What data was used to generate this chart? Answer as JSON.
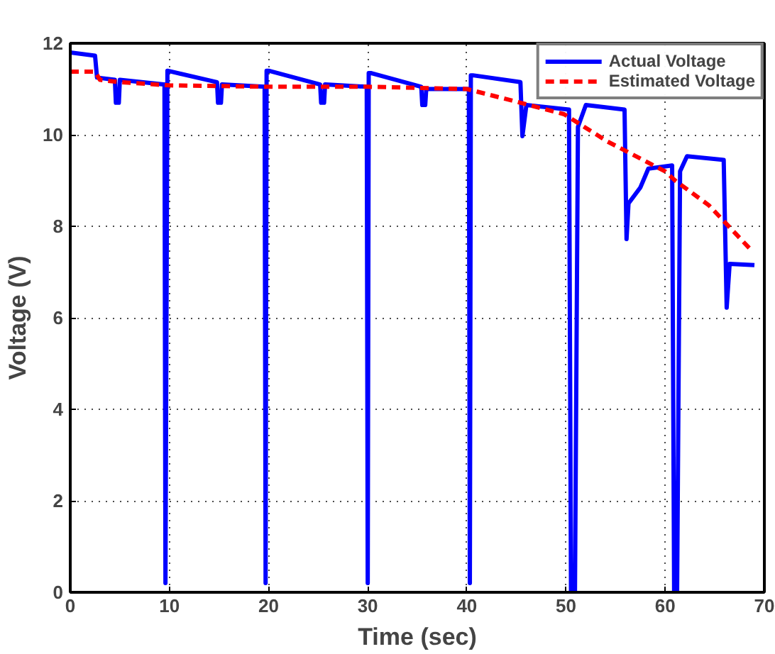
{
  "chart_data": {
    "type": "line",
    "xlabel": "Time (sec)",
    "ylabel": "Voltage (V)",
    "xlim": [
      0,
      70
    ],
    "ylim": [
      0,
      12
    ],
    "xticks": [
      0,
      10,
      20,
      30,
      40,
      50,
      60,
      70
    ],
    "yticks": [
      0,
      2,
      4,
      6,
      8,
      10,
      12
    ],
    "grid": true,
    "legend": "top right",
    "marker": "none",
    "series": [
      {
        "name": "Actual Voltage",
        "color": "#0000ff",
        "line_style": "solid",
        "x": [
          0,
          2.5,
          2.7,
          4.5,
          4.6,
          4.9,
          5.0,
          9.4,
          9.5,
          9.6,
          9.8,
          14.8,
          14.9,
          15.2,
          15.3,
          19.6,
          19.7,
          19.8,
          20.0,
          25.2,
          25.3,
          25.6,
          25.7,
          29.9,
          30.0,
          30.1,
          30.3,
          35.4,
          35.5,
          35.8,
          35.9,
          40.2,
          40.3,
          40.4,
          40.6,
          45.4,
          45.6,
          46.0,
          50.3,
          50.5,
          50.9,
          51.2,
          52.0,
          55.9,
          56.1,
          56.3,
          57.5,
          58.3,
          60.7,
          60.9,
          61.2,
          61.5,
          62.2,
          65.9,
          66.2,
          66.5,
          69.0
        ],
        "values": [
          11.8,
          11.73,
          11.25,
          11.2,
          10.7,
          10.7,
          11.2,
          11.1,
          11.1,
          0.2,
          11.4,
          11.15,
          10.7,
          10.7,
          11.1,
          11.05,
          0.2,
          11.4,
          11.4,
          11.1,
          10.7,
          10.7,
          11.1,
          11.05,
          0.2,
          11.35,
          11.35,
          11.05,
          10.65,
          10.65,
          11.0,
          11.0,
          0.2,
          11.3,
          11.3,
          11.15,
          9.97,
          10.65,
          10.55,
          0,
          0,
          10.17,
          10.65,
          10.55,
          7.72,
          8.5,
          8.85,
          9.26,
          9.33,
          0,
          0,
          9.2,
          9.53,
          9.45,
          6.22,
          7.18,
          7.15
        ]
      },
      {
        "name": "Estimated Voltage",
        "color": "#ff0000",
        "line_style": "dashed",
        "x": [
          0,
          2.5,
          3,
          5,
          10,
          20,
          30,
          40,
          45.4,
          49.8,
          54.2,
          60.0,
          61.0,
          64.4,
          68.8
        ],
        "values": [
          11.38,
          11.38,
          11.2,
          11.15,
          11.08,
          11.05,
          11.05,
          11.0,
          10.7,
          10.45,
          9.85,
          9.2,
          9.0,
          8.46,
          7.45
        ]
      }
    ]
  }
}
